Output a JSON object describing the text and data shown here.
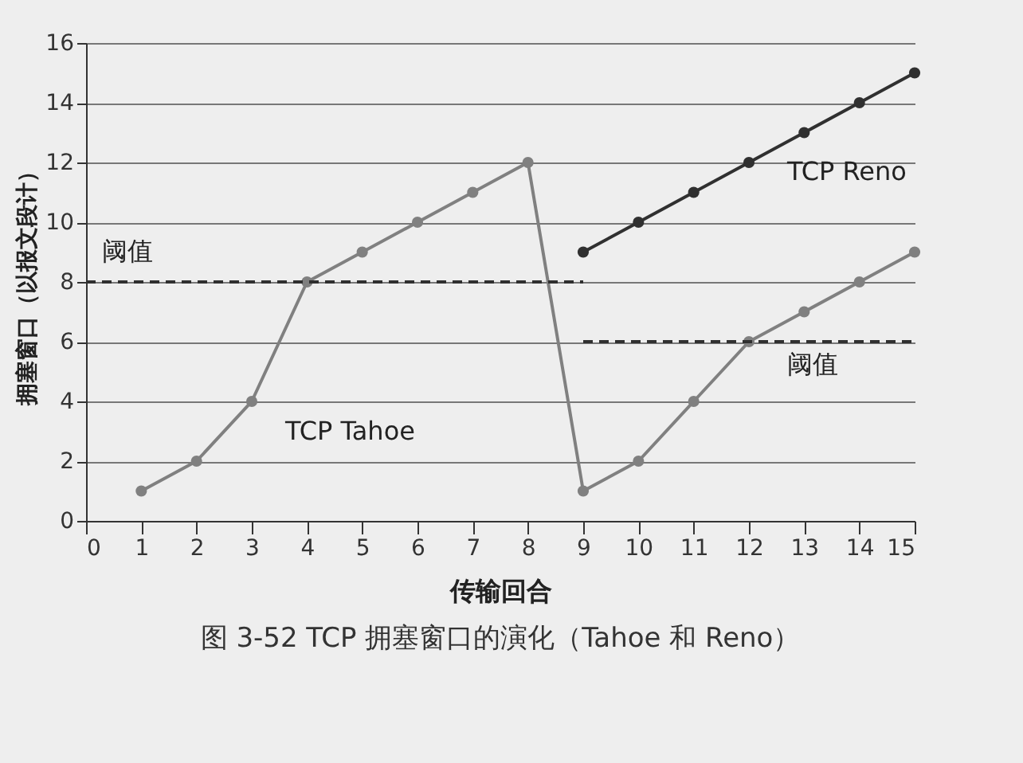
{
  "chart_data": {
    "type": "line",
    "title": "图 3-52 TCP 拥塞窗口的演化（Tahoe 和 Reno）",
    "xlabel": "传输回合",
    "ylabel": "拥塞窗口（以报文段计）",
    "x": [
      1,
      2,
      3,
      4,
      5,
      6,
      7,
      8,
      9,
      10,
      11,
      12,
      13,
      14,
      15
    ],
    "series": [
      {
        "color": "#808080",
        "values": [
          1,
          2,
          4,
          8,
          9,
          10,
          11,
          12,
          1,
          2,
          4,
          6,
          7,
          8,
          9
        ]
      },
      {
        "color": "#303030",
        "x": [
          9,
          10,
          11,
          12,
          13,
          14,
          15
        ],
        "values": [
          9,
          10,
          11,
          12,
          13,
          14,
          15
        ]
      },
      {
        "color": "#303030",
        "x": [
          0,
          9
        ],
        "values": [
          8,
          8
        ],
        "line_style": "dashed",
        "marker": "none"
      },
      {
        "color": "#303030",
        "x": [
          9,
          15
        ],
        "values": [
          6,
          6
        ],
        "line_style": "dashed",
        "marker": "none"
      }
    ],
    "annotations": [
      "TCP Tahoe",
      "TCP Reno",
      "阈值",
      "阈值"
    ],
    "xlim": [
      0,
      15
    ],
    "xticks": [
      0,
      1,
      2,
      3,
      4,
      5,
      6,
      7,
      8,
      9,
      10,
      11,
      12,
      13,
      14,
      15
    ],
    "ylim": [
      0,
      16
    ],
    "yticks": [
      0,
      2,
      4,
      6,
      8,
      10,
      12,
      14,
      16
    ],
    "grid": "y",
    "marker": "circle",
    "line_style": "solid"
  }
}
